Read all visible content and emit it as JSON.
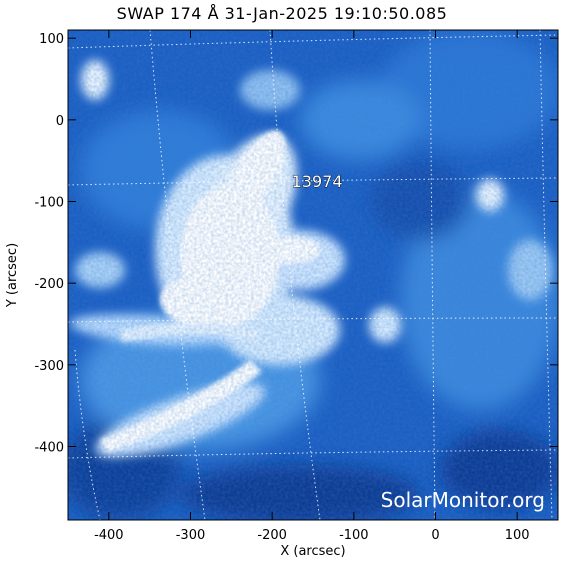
{
  "title": "SWAP 174 Å 31-Jan-2025 19:10:50.085",
  "x_axis": {
    "label": "X (arcsec)",
    "range": [
      -450,
      150
    ],
    "ticks": [
      "-400",
      "-300",
      "-200",
      "-100",
      "0",
      "100"
    ]
  },
  "y_axis": {
    "label": "Y (arcsec)",
    "range": [
      -490,
      110
    ],
    "ticks": [
      "100",
      "0",
      "-100",
      "-200",
      "-300",
      "-400"
    ]
  },
  "active_region": {
    "label": "13974",
    "x": -145,
    "y": -75
  },
  "watermark": "SolarMonitor.org",
  "colors": {
    "background": "#0a3a8c",
    "bright": "#ffffff",
    "mid": "#2f7ed8"
  },
  "grid": "on"
}
